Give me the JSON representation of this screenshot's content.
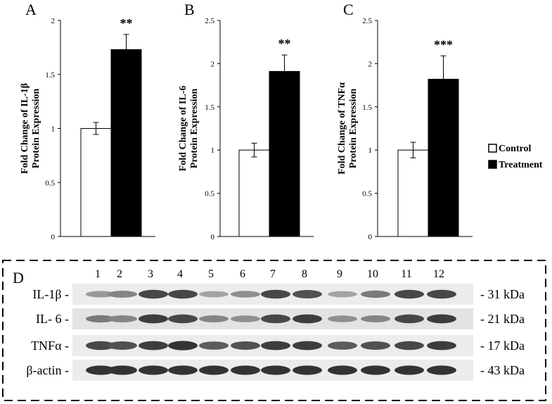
{
  "colors": {
    "control": "#ffffff",
    "treatment": "#000000",
    "axis": "#000000"
  },
  "chart_data": [
    {
      "type": "bar",
      "panel": "A",
      "ylabel": [
        "Fold Change of IL-1β",
        "Protein Expression"
      ],
      "ylim": [
        0,
        2
      ],
      "yticks": [
        0,
        0.5,
        1,
        1.5,
        2
      ],
      "ytick_labels": [
        "0",
        "0.5",
        "1",
        "1.5",
        "2"
      ],
      "series": [
        {
          "name": "Control",
          "values": [
            1.0
          ],
          "errors": [
            0.055
          ]
        },
        {
          "name": "Treatment",
          "values": [
            1.73
          ],
          "errors": [
            0.14
          ]
        }
      ],
      "significance": "**"
    },
    {
      "type": "bar",
      "panel": "B",
      "ylabel": [
        "Fold Change of IL-6",
        "Protein Expression"
      ],
      "ylim": [
        0,
        2.5
      ],
      "yticks": [
        0,
        0.5,
        1,
        1.5,
        2,
        2.5
      ],
      "ytick_labels": [
        "0",
        "0.5",
        "1",
        "1.5",
        "2",
        "2.5"
      ],
      "series": [
        {
          "name": "Control",
          "values": [
            1.0
          ],
          "errors": [
            0.08
          ]
        },
        {
          "name": "Treatment",
          "values": [
            1.91
          ],
          "errors": [
            0.19
          ]
        }
      ],
      "significance": "**"
    },
    {
      "type": "bar",
      "panel": "C",
      "ylabel": [
        "Fold Change of TNFα",
        "Protein Expression"
      ],
      "ylim": [
        0,
        2.5
      ],
      "yticks": [
        0,
        0.5,
        1,
        1.5,
        2,
        2.5
      ],
      "ytick_labels": [
        "0",
        "0.5",
        "1",
        "1.5",
        "2",
        "2.5"
      ],
      "series": [
        {
          "name": "Control",
          "values": [
            1.0
          ],
          "errors": [
            0.09
          ]
        },
        {
          "name": "Treatment",
          "values": [
            1.82
          ],
          "errors": [
            0.27
          ]
        }
      ],
      "significance": "***"
    }
  ],
  "legend": {
    "placement": "right",
    "items": [
      "Control",
      "Treatment"
    ]
  },
  "blot": {
    "panel": "D",
    "lanes": [
      "1",
      "2",
      "3",
      "4",
      "5",
      "6",
      "7",
      "8",
      "9",
      "10",
      "11",
      "12"
    ],
    "rows": [
      {
        "label": "IL-1β -",
        "kda": "- 31 kDa",
        "intensity": [
          0.4,
          0.5,
          0.8,
          0.8,
          0.35,
          0.45,
          0.8,
          0.75,
          0.35,
          0.55,
          0.8,
          0.8
        ]
      },
      {
        "label": "IL- 6 -",
        "kda": "- 21 kDa",
        "intensity": [
          0.55,
          0.5,
          0.85,
          0.8,
          0.5,
          0.45,
          0.8,
          0.85,
          0.45,
          0.5,
          0.8,
          0.85
        ]
      },
      {
        "label": "TNFα -",
        "kda": "- 17 kDa",
        "intensity": [
          0.8,
          0.75,
          0.85,
          0.9,
          0.7,
          0.75,
          0.85,
          0.85,
          0.7,
          0.75,
          0.8,
          0.85
        ]
      },
      {
        "label": "β-actin -",
        "kda": "- 43 kDa",
        "intensity": [
          0.9,
          0.9,
          0.9,
          0.9,
          0.9,
          0.9,
          0.9,
          0.9,
          0.9,
          0.9,
          0.9,
          0.9
        ]
      }
    ]
  }
}
